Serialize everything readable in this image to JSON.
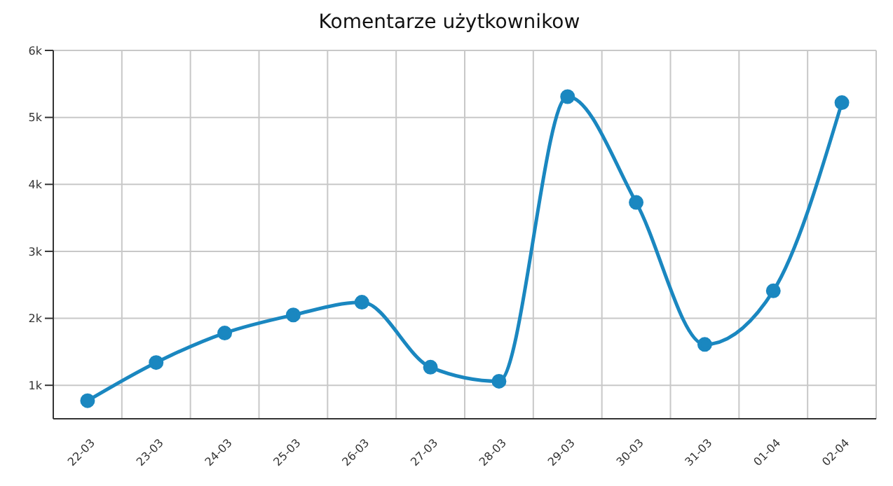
{
  "chart_data": {
    "type": "line",
    "title": "Komentarze użytkownikow",
    "categories": [
      "22-03",
      "23-03",
      "24-03",
      "25-03",
      "26-03",
      "27-03",
      "28-03",
      "29-03",
      "30-03",
      "31-03",
      "01-04",
      "02-04"
    ],
    "series": [
      {
        "color": "#1a87c0",
        "values": [
          770,
          1340,
          1780,
          2050,
          2240,
          1270,
          1060,
          5310,
          3730,
          1610,
          2410,
          5220
        ]
      }
    ],
    "ylim": [
      500,
      6000
    ],
    "yticks": [
      {
        "value": 1000,
        "label": "1k"
      },
      {
        "value": 2000,
        "label": "2k"
      },
      {
        "value": 3000,
        "label": "3k"
      },
      {
        "value": 4000,
        "label": "4k"
      },
      {
        "value": 5000,
        "label": "5k"
      },
      {
        "value": 6000,
        "label": "6k"
      }
    ],
    "grid": true,
    "marker": "circle",
    "line_style": "solid"
  }
}
